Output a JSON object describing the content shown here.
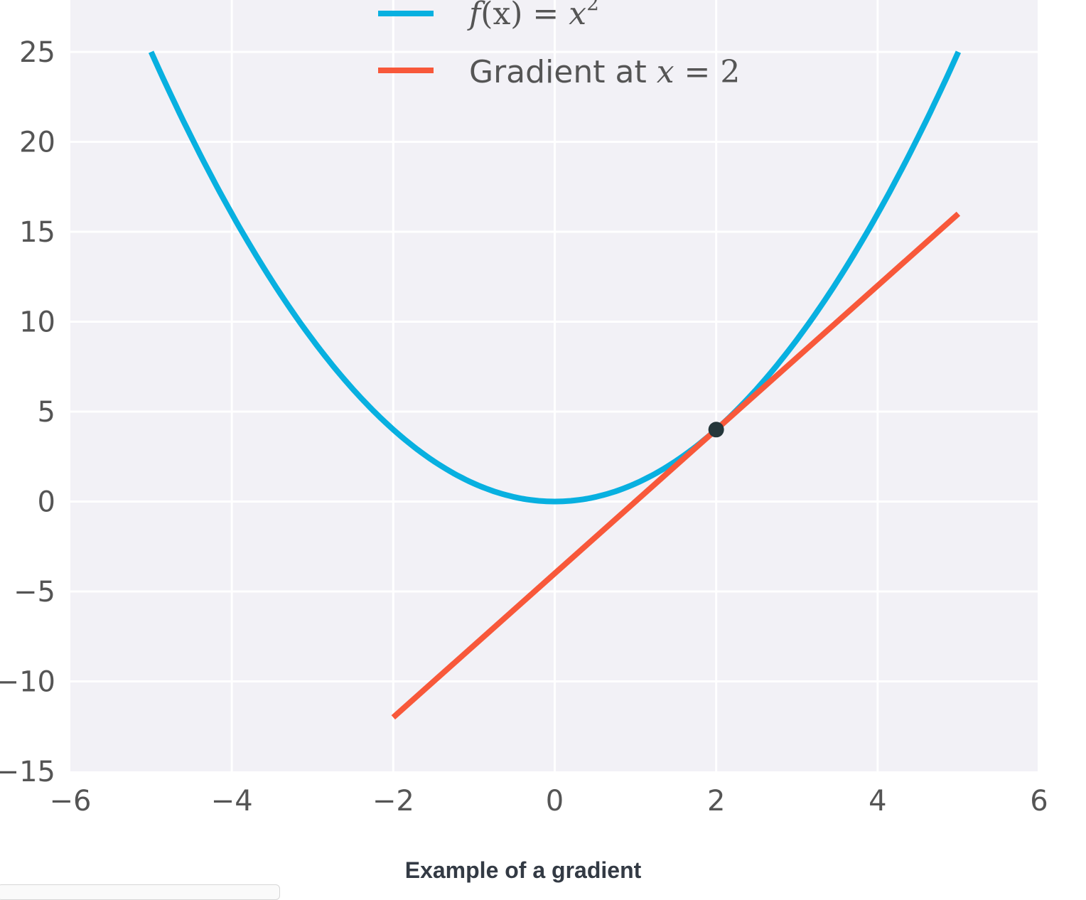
{
  "chart_data": {
    "type": "line",
    "title": "",
    "xlabel": "",
    "ylabel": "",
    "xlim": [
      -6,
      6
    ],
    "ylim": [
      -15,
      25
    ],
    "x_ticks": [
      "−6",
      "−4",
      "−2",
      "0",
      "2",
      "4",
      "6"
    ],
    "y_ticks": [
      "25",
      "20",
      "15",
      "10",
      "5",
      "0",
      "−5",
      "−10",
      "−15"
    ],
    "grid": true,
    "legend_position": "top-center",
    "series": [
      {
        "name_parts": [
          "f",
          "(x) = ",
          "x",
          "2"
        ],
        "color": "#08b0e0",
        "x": [
          -5,
          -4,
          -3,
          -2,
          -1,
          0,
          1,
          2,
          3,
          4,
          5
        ],
        "y": [
          25,
          16,
          9,
          4,
          1,
          0,
          1,
          4,
          9,
          16,
          25
        ]
      },
      {
        "name_parts": [
          "Gradient at ",
          "x",
          " = ",
          "2"
        ],
        "color": "#f8583a",
        "x": [
          -2,
          5
        ],
        "y": [
          -12,
          16
        ]
      }
    ],
    "point": {
      "x": 2,
      "y": 4,
      "color": "#24363a"
    },
    "background_color": "#f2f1f6",
    "grid_color": "#ffffff"
  },
  "caption": "Example of a gradient"
}
